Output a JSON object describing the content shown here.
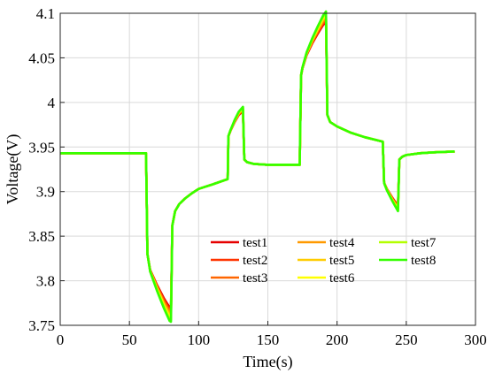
{
  "chart_data": {
    "type": "line",
    "xlabel": "Time(s)",
    "ylabel": "Voltage(V)",
    "xlim": [
      0,
      300
    ],
    "ylim": [
      3.75,
      4.1
    ],
    "xticks": [
      0,
      50,
      100,
      150,
      200,
      250,
      300
    ],
    "yticks": [
      3.75,
      3.8,
      3.85,
      3.9,
      3.95,
      4,
      4.05,
      4.1
    ],
    "ytick_labels": [
      "3.75",
      "3.8",
      "3.85",
      "3.9",
      "3.95",
      "4",
      "4.05",
      "4.1"
    ],
    "grid": true,
    "legend_position": "bottom-right",
    "base_curve": {
      "x": [
        0,
        62,
        63,
        65,
        70,
        75,
        79,
        80,
        81,
        83,
        86,
        90,
        95,
        100,
        110,
        121,
        121.5,
        123,
        126,
        129,
        132,
        133,
        135,
        140,
        150,
        160,
        173,
        174,
        175,
        178,
        182,
        186,
        190,
        192,
        193,
        195,
        200,
        210,
        220,
        233,
        234,
        236,
        240,
        244,
        245,
        247,
        250,
        260,
        270,
        285
      ],
      "y": [
        3.943,
        3.943,
        3.83,
        3.812,
        3.795,
        3.78,
        3.77,
        3.77,
        3.862,
        3.878,
        3.886,
        3.892,
        3.898,
        3.903,
        3.908,
        3.914,
        3.962,
        3.968,
        3.978,
        3.986,
        3.99,
        3.936,
        3.933,
        3.931,
        3.93,
        3.93,
        3.93,
        4.03,
        4.038,
        4.053,
        4.066,
        4.077,
        4.087,
        4.09,
        3.986,
        3.978,
        3.973,
        3.966,
        3.961,
        3.956,
        3.91,
        3.903,
        3.893,
        3.884,
        3.936,
        3.939,
        3.941,
        3.943,
        3.944,
        3.945
      ]
    },
    "series": [
      {
        "name": "test1",
        "color": "#e60000",
        "delta_scale": 0.0
      },
      {
        "name": "test2",
        "color": "#ff3300",
        "delta_scale": 0.15
      },
      {
        "name": "test3",
        "color": "#ff6600",
        "delta_scale": 0.3
      },
      {
        "name": "test4",
        "color": "#ff9900",
        "delta_scale": 0.45
      },
      {
        "name": "test5",
        "color": "#ffcc00",
        "delta_scale": 0.6
      },
      {
        "name": "test6",
        "color": "#ffff00",
        "delta_scale": 0.72
      },
      {
        "name": "test7",
        "color": "#b3ff00",
        "delta_scale": 0.86
      },
      {
        "name": "test8",
        "color": "#33ff00",
        "delta_scale": 1.0
      }
    ],
    "spread": {
      "dip1": -0.016,
      "peak1": 0.005,
      "peak2": 0.012,
      "dip2": -0.006
    }
  }
}
